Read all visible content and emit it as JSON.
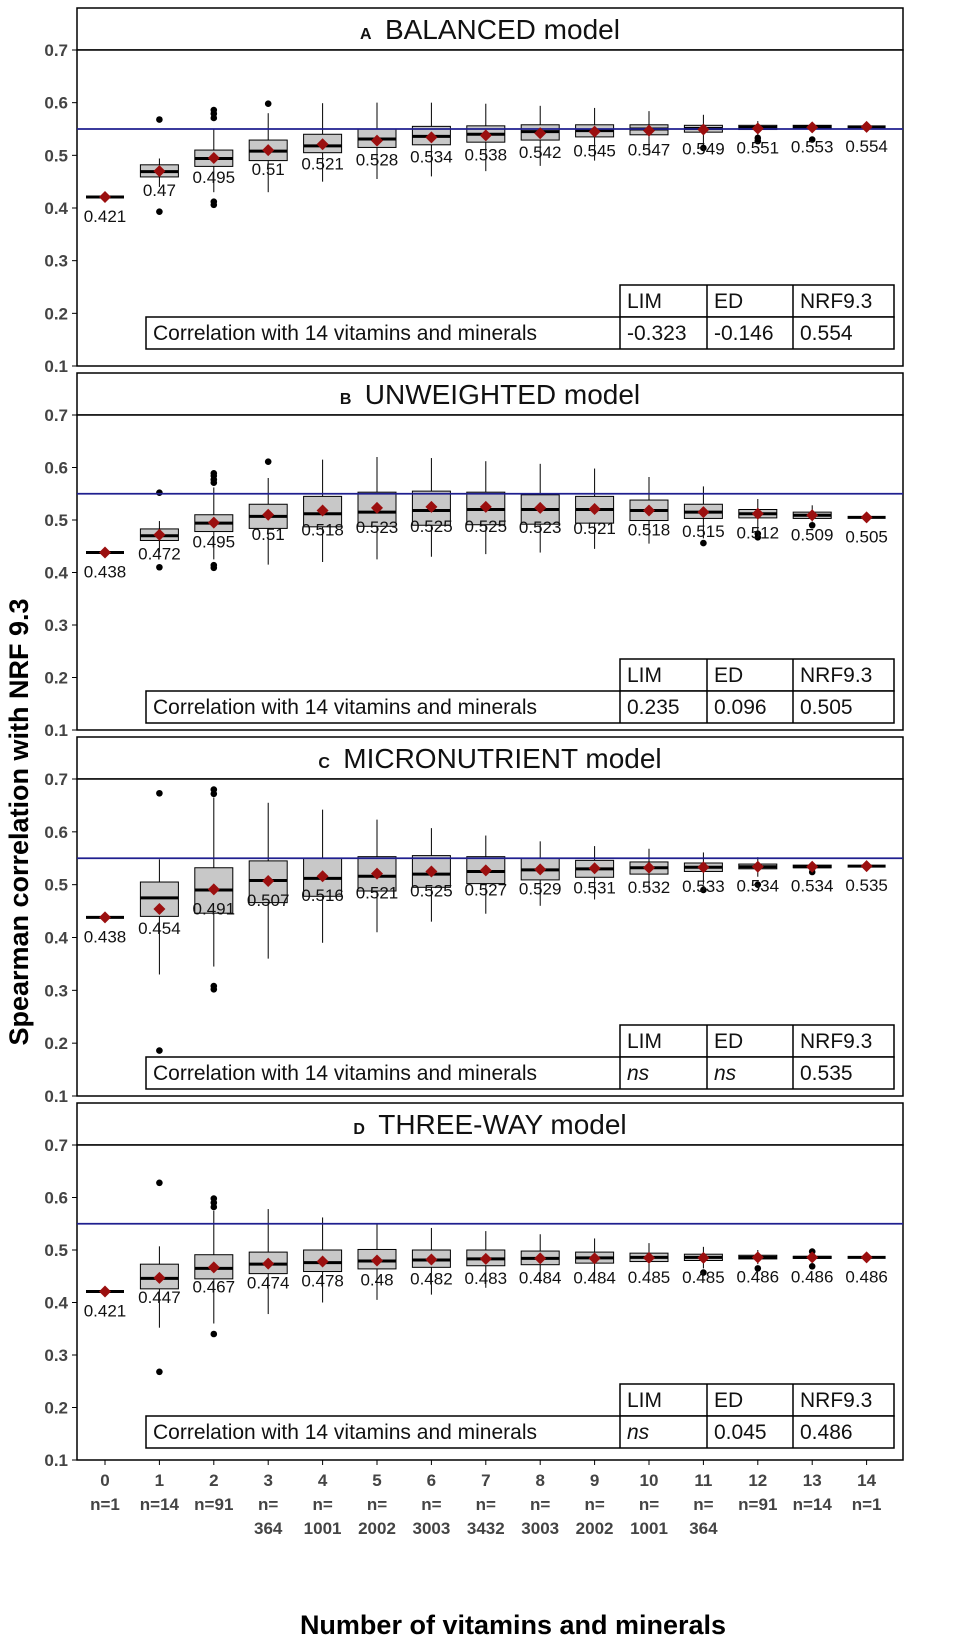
{
  "figure": {
    "ylabel": "Spearman correlation with NRF 9.3",
    "xlabel": "Number of vitamins and minerals",
    "x_ticks": [
      {
        "line1": "0",
        "line2": "n=1"
      },
      {
        "line1": "1",
        "line2": "n=14"
      },
      {
        "line1": "2",
        "line2": "n=91"
      },
      {
        "line1": "3",
        "line2": "n=",
        "line3": "364"
      },
      {
        "line1": "4",
        "line2": "n=",
        "line3": "1001"
      },
      {
        "line1": "5",
        "line2": "n=",
        "line3": "2002"
      },
      {
        "line1": "6",
        "line2": "n=",
        "line3": "3003"
      },
      {
        "line1": "7",
        "line2": "n=",
        "line3": "3432"
      },
      {
        "line1": "8",
        "line2": "n=",
        "line3": "3003"
      },
      {
        "line1": "9",
        "line2": "n=",
        "line3": "2002"
      },
      {
        "line1": "10",
        "line2": "n=",
        "line3": "1001"
      },
      {
        "line1": "11",
        "line2": "n=",
        "line3": "364"
      },
      {
        "line1": "12",
        "line2": "n=91"
      },
      {
        "line1": "13",
        "line2": "n=14"
      },
      {
        "line1": "14",
        "line2": "n=1"
      }
    ],
    "y_ticks": [
      "0.1",
      "0.2",
      "0.3",
      "0.4",
      "0.5",
      "0.6",
      "0.7"
    ],
    "reference_line": 0.55,
    "colors": {
      "box_fill": "#c8c8c8",
      "mean_marker": "#9b0f0f",
      "reference_line": "#1f1f8f",
      "outlier": "#000000"
    }
  },
  "chart_data": [
    {
      "type": "box",
      "panel_letter": "A",
      "title": "BALANCED model",
      "ylim": [
        0.1,
        0.7
      ],
      "x": [
        0,
        1,
        2,
        3,
        4,
        5,
        6,
        7,
        8,
        9,
        10,
        11,
        12,
        13,
        14
      ],
      "means": [
        0.421,
        0.47,
        0.495,
        0.51,
        0.521,
        0.528,
        0.534,
        0.538,
        0.542,
        0.545,
        0.547,
        0.549,
        0.551,
        0.553,
        0.554
      ],
      "mean_labels": [
        "0.421",
        "0.47",
        "0.495",
        "0.51",
        "0.521",
        "0.528",
        "0.534",
        "0.538",
        "0.542",
        "0.545",
        "0.547",
        "0.549",
        "0.551",
        "0.553",
        "0.554"
      ],
      "boxes": [
        {
          "min": 0.421,
          "q1": 0.421,
          "median": 0.421,
          "q3": 0.421,
          "max": 0.421,
          "outliers": []
        },
        {
          "min": 0.44,
          "q1": 0.459,
          "median": 0.469,
          "q3": 0.482,
          "max": 0.494,
          "outliers": [
            0.393,
            0.568
          ]
        },
        {
          "min": 0.43,
          "q1": 0.479,
          "median": 0.494,
          "q3": 0.51,
          "max": 0.55,
          "outliers": [
            0.406,
            0.412,
            0.571,
            0.579,
            0.586
          ]
        },
        {
          "min": 0.43,
          "q1": 0.49,
          "median": 0.508,
          "q3": 0.529,
          "max": 0.58,
          "outliers": [
            0.598
          ]
        },
        {
          "min": 0.45,
          "q1": 0.505,
          "median": 0.518,
          "q3": 0.54,
          "max": 0.599,
          "outliers": []
        },
        {
          "min": 0.455,
          "q1": 0.515,
          "median": 0.531,
          "q3": 0.55,
          "max": 0.6,
          "outliers": []
        },
        {
          "min": 0.46,
          "q1": 0.52,
          "median": 0.536,
          "q3": 0.555,
          "max": 0.6,
          "outliers": []
        },
        {
          "min": 0.47,
          "q1": 0.525,
          "median": 0.54,
          "q3": 0.556,
          "max": 0.598,
          "outliers": []
        },
        {
          "min": 0.48,
          "q1": 0.529,
          "median": 0.545,
          "q3": 0.558,
          "max": 0.594,
          "outliers": []
        },
        {
          "min": 0.49,
          "q1": 0.535,
          "median": 0.547,
          "q3": 0.558,
          "max": 0.59,
          "outliers": []
        },
        {
          "min": 0.5,
          "q1": 0.539,
          "median": 0.55,
          "q3": 0.558,
          "max": 0.584,
          "outliers": []
        },
        {
          "min": 0.515,
          "q1": 0.544,
          "median": 0.551,
          "q3": 0.557,
          "max": 0.577,
          "outliers": [
            0.514
          ]
        },
        {
          "min": 0.536,
          "q1": 0.549,
          "median": 0.553,
          "q3": 0.557,
          "max": 0.565,
          "outliers": [
            0.527,
            0.533
          ]
        },
        {
          "min": 0.55,
          "q1": 0.552,
          "median": 0.554,
          "q3": 0.557,
          "max": 0.558,
          "outliers": [
            0.53
          ]
        },
        {
          "min": 0.554,
          "q1": 0.554,
          "median": 0.554,
          "q3": 0.554,
          "max": 0.554,
          "outliers": []
        }
      ],
      "table": {
        "headers": [
          "LIM",
          "ED",
          "NRF9.3"
        ],
        "row_label": "Correlation with 14 vitamins and minerals",
        "values": [
          "-0.323",
          "-0.146",
          "0.554"
        ],
        "italic": [
          false,
          false,
          false
        ]
      }
    },
    {
      "type": "box",
      "panel_letter": "B",
      "title": "UNWEIGHTED model",
      "ylim": [
        0.1,
        0.7
      ],
      "x": [
        0,
        1,
        2,
        3,
        4,
        5,
        6,
        7,
        8,
        9,
        10,
        11,
        12,
        13,
        14
      ],
      "means": [
        0.438,
        0.472,
        0.495,
        0.51,
        0.518,
        0.523,
        0.525,
        0.525,
        0.523,
        0.521,
        0.518,
        0.515,
        0.512,
        0.509,
        0.505
      ],
      "mean_labels": [
        "0.438",
        "0.472",
        "0.495",
        "0.51",
        "0.518",
        "0.523",
        "0.525",
        "0.525",
        "0.523",
        "0.521",
        "0.518",
        "0.515",
        "0.512",
        "0.509",
        "0.505"
      ],
      "boxes": [
        {
          "min": 0.438,
          "q1": 0.438,
          "median": 0.438,
          "q3": 0.438,
          "max": 0.438,
          "outliers": []
        },
        {
          "min": 0.438,
          "q1": 0.461,
          "median": 0.47,
          "q3": 0.483,
          "max": 0.498,
          "outliers": [
            0.41,
            0.552
          ]
        },
        {
          "min": 0.425,
          "q1": 0.478,
          "median": 0.494,
          "q3": 0.51,
          "max": 0.562,
          "outliers": [
            0.409,
            0.414,
            0.571,
            0.577,
            0.584,
            0.589
          ]
        },
        {
          "min": 0.415,
          "q1": 0.484,
          "median": 0.507,
          "q3": 0.53,
          "max": 0.58,
          "outliers": [
            0.611
          ]
        },
        {
          "min": 0.42,
          "q1": 0.487,
          "median": 0.512,
          "q3": 0.545,
          "max": 0.615,
          "outliers": []
        },
        {
          "min": 0.425,
          "q1": 0.488,
          "median": 0.515,
          "q3": 0.553,
          "max": 0.62,
          "outliers": []
        },
        {
          "min": 0.43,
          "q1": 0.49,
          "median": 0.518,
          "q3": 0.555,
          "max": 0.618,
          "outliers": []
        },
        {
          "min": 0.435,
          "q1": 0.491,
          "median": 0.52,
          "q3": 0.553,
          "max": 0.612,
          "outliers": []
        },
        {
          "min": 0.438,
          "q1": 0.492,
          "median": 0.52,
          "q3": 0.548,
          "max": 0.607,
          "outliers": []
        },
        {
          "min": 0.445,
          "q1": 0.494,
          "median": 0.52,
          "q3": 0.545,
          "max": 0.598,
          "outliers": []
        },
        {
          "min": 0.455,
          "q1": 0.499,
          "median": 0.518,
          "q3": 0.538,
          "max": 0.582,
          "outliers": []
        },
        {
          "min": 0.465,
          "q1": 0.503,
          "median": 0.515,
          "q3": 0.53,
          "max": 0.564,
          "outliers": [
            0.456
          ]
        },
        {
          "min": 0.48,
          "q1": 0.504,
          "median": 0.512,
          "q3": 0.52,
          "max": 0.54,
          "outliers": [
            0.467,
            0.474
          ]
        },
        {
          "min": 0.497,
          "q1": 0.503,
          "median": 0.509,
          "q3": 0.515,
          "max": 0.528,
          "outliers": [
            0.49
          ]
        },
        {
          "min": 0.505,
          "q1": 0.505,
          "median": 0.505,
          "q3": 0.505,
          "max": 0.505,
          "outliers": []
        }
      ],
      "table": {
        "headers": [
          "LIM",
          "ED",
          "NRF9.3"
        ],
        "row_label": "Correlation with 14 vitamins and minerals",
        "values": [
          "0.235",
          "0.096",
          "0.505"
        ],
        "italic": [
          false,
          false,
          false
        ]
      }
    },
    {
      "type": "box",
      "panel_letter": "C",
      "title": "MICRONUTRIENT model",
      "ylim": [
        0.1,
        0.7
      ],
      "x": [
        0,
        1,
        2,
        3,
        4,
        5,
        6,
        7,
        8,
        9,
        10,
        11,
        12,
        13,
        14
      ],
      "means": [
        0.438,
        0.454,
        0.491,
        0.507,
        0.516,
        0.521,
        0.525,
        0.527,
        0.529,
        0.531,
        0.532,
        0.533,
        0.534,
        0.534,
        0.535
      ],
      "mean_labels": [
        "0.438",
        "0.454",
        "0.491",
        "0.507",
        "0.516",
        "0.521",
        "0.525",
        "0.527",
        "0.529",
        "0.531",
        "0.532",
        "0.533",
        "0.534",
        "0.534",
        "0.535"
      ],
      "boxes": [
        {
          "min": 0.438,
          "q1": 0.438,
          "median": 0.438,
          "q3": 0.438,
          "max": 0.438,
          "outliers": []
        },
        {
          "min": 0.33,
          "q1": 0.44,
          "median": 0.475,
          "q3": 0.505,
          "max": 0.548,
          "outliers": [
            0.186,
            0.673
          ]
        },
        {
          "min": 0.345,
          "q1": 0.446,
          "median": 0.49,
          "q3": 0.532,
          "max": 0.665,
          "outliers": [
            0.302,
            0.308,
            0.672,
            0.68
          ]
        },
        {
          "min": 0.36,
          "q1": 0.466,
          "median": 0.508,
          "q3": 0.545,
          "max": 0.655,
          "outliers": []
        },
        {
          "min": 0.39,
          "q1": 0.478,
          "median": 0.512,
          "q3": 0.55,
          "max": 0.642,
          "outliers": []
        },
        {
          "min": 0.41,
          "q1": 0.488,
          "median": 0.516,
          "q3": 0.553,
          "max": 0.623,
          "outliers": []
        },
        {
          "min": 0.43,
          "q1": 0.495,
          "median": 0.52,
          "q3": 0.555,
          "max": 0.607,
          "outliers": []
        },
        {
          "min": 0.445,
          "q1": 0.502,
          "median": 0.525,
          "q3": 0.553,
          "max": 0.593,
          "outliers": []
        },
        {
          "min": 0.46,
          "q1": 0.509,
          "median": 0.528,
          "q3": 0.55,
          "max": 0.582,
          "outliers": []
        },
        {
          "min": 0.472,
          "q1": 0.514,
          "median": 0.53,
          "q3": 0.546,
          "max": 0.573,
          "outliers": []
        },
        {
          "min": 0.49,
          "q1": 0.52,
          "median": 0.532,
          "q3": 0.543,
          "max": 0.568,
          "outliers": []
        },
        {
          "min": 0.5,
          "q1": 0.525,
          "median": 0.533,
          "q3": 0.541,
          "max": 0.561,
          "outliers": [
            0.49
          ]
        },
        {
          "min": 0.515,
          "q1": 0.53,
          "median": 0.534,
          "q3": 0.539,
          "max": 0.552,
          "outliers": [
            0.5
          ]
        },
        {
          "min": 0.527,
          "q1": 0.532,
          "median": 0.534,
          "q3": 0.537,
          "max": 0.541,
          "outliers": [
            0.524
          ]
        },
        {
          "min": 0.535,
          "q1": 0.535,
          "median": 0.535,
          "q3": 0.535,
          "max": 0.535,
          "outliers": []
        }
      ],
      "table": {
        "headers": [
          "LIM",
          "ED",
          "NRF9.3"
        ],
        "row_label": "Correlation with 14 vitamins and minerals",
        "values": [
          "ns",
          "ns",
          "0.535"
        ],
        "italic": [
          true,
          true,
          false
        ]
      }
    },
    {
      "type": "box",
      "panel_letter": "D",
      "title": "THREE-WAY model",
      "ylim": [
        0.1,
        0.7
      ],
      "x": [
        0,
        1,
        2,
        3,
        4,
        5,
        6,
        7,
        8,
        9,
        10,
        11,
        12,
        13,
        14
      ],
      "means": [
        0.421,
        0.447,
        0.467,
        0.474,
        0.478,
        0.48,
        0.482,
        0.483,
        0.484,
        0.484,
        0.485,
        0.485,
        0.486,
        0.486,
        0.486
      ],
      "mean_labels": [
        "0.421",
        "0.447",
        "0.467",
        "0.474",
        "0.478",
        "0.48",
        "0.482",
        "0.483",
        "0.484",
        "0.484",
        "0.485",
        "0.485",
        "0.486",
        "0.486",
        "0.486"
      ],
      "boxes": [
        {
          "min": 0.421,
          "q1": 0.421,
          "median": 0.421,
          "q3": 0.421,
          "max": 0.421,
          "outliers": []
        },
        {
          "min": 0.352,
          "q1": 0.426,
          "median": 0.446,
          "q3": 0.473,
          "max": 0.507,
          "outliers": [
            0.268,
            0.628
          ]
        },
        {
          "min": 0.36,
          "q1": 0.445,
          "median": 0.465,
          "q3": 0.491,
          "max": 0.575,
          "outliers": [
            0.34,
            0.582,
            0.59,
            0.598
          ]
        },
        {
          "min": 0.378,
          "q1": 0.455,
          "median": 0.473,
          "q3": 0.496,
          "max": 0.578,
          "outliers": []
        },
        {
          "min": 0.4,
          "q1": 0.459,
          "median": 0.476,
          "q3": 0.5,
          "max": 0.562,
          "outliers": []
        },
        {
          "min": 0.405,
          "q1": 0.464,
          "median": 0.479,
          "q3": 0.501,
          "max": 0.55,
          "outliers": []
        },
        {
          "min": 0.415,
          "q1": 0.467,
          "median": 0.481,
          "q3": 0.5,
          "max": 0.542,
          "outliers": []
        },
        {
          "min": 0.428,
          "q1": 0.47,
          "median": 0.483,
          "q3": 0.5,
          "max": 0.536,
          "outliers": []
        },
        {
          "min": 0.437,
          "q1": 0.472,
          "median": 0.484,
          "q3": 0.498,
          "max": 0.53,
          "outliers": []
        },
        {
          "min": 0.447,
          "q1": 0.475,
          "median": 0.485,
          "q3": 0.496,
          "max": 0.522,
          "outliers": []
        },
        {
          "min": 0.455,
          "q1": 0.478,
          "median": 0.486,
          "q3": 0.494,
          "max": 0.513,
          "outliers": []
        },
        {
          "min": 0.465,
          "q1": 0.48,
          "median": 0.486,
          "q3": 0.492,
          "max": 0.506,
          "outliers": [
            0.457
          ]
        },
        {
          "min": 0.473,
          "q1": 0.483,
          "median": 0.486,
          "q3": 0.49,
          "max": 0.5,
          "outliers": [
            0.465
          ]
        },
        {
          "min": 0.481,
          "q1": 0.484,
          "median": 0.486,
          "q3": 0.488,
          "max": 0.492,
          "outliers": [
            0.469,
            0.497
          ]
        },
        {
          "min": 0.486,
          "q1": 0.486,
          "median": 0.486,
          "q3": 0.486,
          "max": 0.486,
          "outliers": []
        }
      ],
      "table": {
        "headers": [
          "LIM",
          "ED",
          "NRF9.3"
        ],
        "row_label": "Correlation with 14 vitamins and minerals",
        "values": [
          "ns",
          "0.045",
          "0.486"
        ],
        "italic": [
          true,
          false,
          false
        ]
      }
    }
  ]
}
